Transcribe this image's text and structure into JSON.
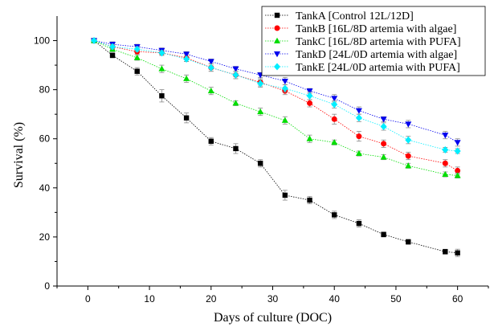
{
  "chart_data": {
    "type": "line",
    "title": "",
    "xlabel": "Days of culture (DOC)",
    "ylabel": "Survival (%)",
    "xlim": [
      -5,
      65
    ],
    "ylim": [
      0,
      110
    ],
    "xticks": [
      0,
      10,
      20,
      30,
      40,
      50,
      60
    ],
    "yticks": [
      0,
      20,
      40,
      60,
      80,
      100
    ],
    "grid": false,
    "legend_position": "top-right",
    "series": [
      {
        "name": "TankA [Control 12L/12D]",
        "color": "#000000",
        "marker": "square",
        "x": [
          1,
          4,
          8,
          12,
          16,
          20,
          24,
          28,
          32,
          36,
          40,
          44,
          48,
          52,
          58,
          60
        ],
        "values": [
          100,
          94,
          87.5,
          77.5,
          68.5,
          59,
          56,
          50,
          37,
          35,
          29,
          25.5,
          21,
          18,
          14,
          13.5
        ],
        "errors": [
          0,
          1,
          1.5,
          2.5,
          2,
          1.5,
          2,
          1.5,
          2,
          1.5,
          1.5,
          1.5,
          1,
          1,
          1,
          1.5
        ]
      },
      {
        "name": "TankB [16L/8D artemia with algae]",
        "color": "#ff0000",
        "marker": "circle",
        "x": [
          1,
          4,
          8,
          12,
          16,
          20,
          24,
          28,
          32,
          36,
          40,
          44,
          48,
          52,
          58,
          60
        ],
        "values": [
          100,
          97.5,
          95.5,
          95,
          93,
          89,
          86,
          83,
          79.5,
          74.5,
          68,
          61,
          58,
          53,
          50,
          47
        ],
        "errors": [
          0,
          1,
          1,
          1,
          1.5,
          1.5,
          1.5,
          1.5,
          1.5,
          1.5,
          2,
          2,
          1.5,
          1.5,
          1.5,
          1.5
        ]
      },
      {
        "name": "TankC [16L/8D artemia with PUFA]",
        "color": "#00dd00",
        "marker": "triangle-up",
        "x": [
          1,
          4,
          8,
          12,
          16,
          20,
          24,
          28,
          32,
          36,
          40,
          44,
          48,
          52,
          58,
          60
        ],
        "values": [
          100,
          96.5,
          93,
          88.5,
          84.5,
          79.5,
          74.5,
          71,
          67.5,
          60,
          58.5,
          54,
          52.5,
          49,
          45.5,
          45
        ],
        "errors": [
          0,
          1,
          1,
          1.5,
          1.5,
          1.5,
          1,
          1.5,
          1.5,
          1.5,
          1,
          1,
          1,
          1,
          1,
          1
        ]
      },
      {
        "name": "TankD [24L/0D artemia with algae]",
        "color": "#0000ee",
        "marker": "triangle-down",
        "x": [
          1,
          4,
          8,
          12,
          16,
          20,
          24,
          28,
          32,
          36,
          40,
          44,
          48,
          52,
          58,
          60
        ],
        "values": [
          100,
          98.5,
          97.5,
          96,
          94.5,
          91.5,
          88.5,
          86,
          83.5,
          79.5,
          76.5,
          71.5,
          68,
          66,
          61.5,
          58.5
        ],
        "errors": [
          0,
          1,
          1,
          1,
          1,
          1,
          1,
          1,
          1.5,
          1,
          1.5,
          1.5,
          1,
          1.5,
          1.5,
          1.5
        ]
      },
      {
        "name": "TankE [24L/0D artemia with PUFA]",
        "color": "#00eeff",
        "marker": "diamond",
        "x": [
          1,
          4,
          8,
          12,
          16,
          20,
          24,
          28,
          32,
          36,
          40,
          44,
          48,
          52,
          58,
          60
        ],
        "values": [
          100,
          97.5,
          96.5,
          95,
          92.5,
          89,
          86,
          82.5,
          80.5,
          77.5,
          74,
          68.5,
          65,
          59.5,
          55.5,
          55
        ],
        "errors": [
          0,
          1,
          1,
          1,
          1,
          1.5,
          1.5,
          1.5,
          1.5,
          1.5,
          1.5,
          1.5,
          1.5,
          1.5,
          1,
          1
        ]
      }
    ]
  }
}
